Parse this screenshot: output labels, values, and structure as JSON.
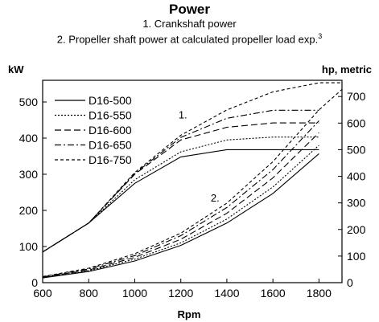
{
  "chart_data": {
    "type": "line",
    "title": "Power",
    "subtitle_1": "1. Crankshaft power",
    "subtitle_2": "2. Propeller shaft power at calculated propeller load exp.",
    "subtitle_2_sup": "3",
    "xlabel": "Rpm",
    "ylabel_left": "kW",
    "ylabel_right": "hp, metric",
    "xlim": [
      600,
      1900
    ],
    "ylim_left": [
      0,
      560
    ],
    "ylim_right": [
      0,
      761
    ],
    "x_ticks": [
      600,
      800,
      1000,
      1200,
      1400,
      1600,
      1800
    ],
    "y_ticks_left": [
      0,
      100,
      200,
      300,
      400,
      500
    ],
    "y_ticks_right": [
      0,
      100,
      200,
      300,
      400,
      500,
      600,
      700
    ],
    "curve_labels": [
      {
        "text": "1.",
        "x": 1190,
        "y": 455
      },
      {
        "text": "2.",
        "x": 1330,
        "y": 225
      }
    ],
    "legend_position": "top-left",
    "grid": false,
    "series": [
      {
        "name": "D16-500",
        "dash": "solid",
        "crankshaft": [
          [
            600,
            85
          ],
          [
            800,
            165
          ],
          [
            1000,
            275
          ],
          [
            1200,
            348
          ],
          [
            1400,
            368
          ],
          [
            1600,
            368
          ],
          [
            1800,
            368
          ]
        ],
        "propeller": [
          [
            600,
            13
          ],
          [
            800,
            31
          ],
          [
            1000,
            60
          ],
          [
            1200,
            103
          ],
          [
            1400,
            165
          ],
          [
            1600,
            247
          ],
          [
            1800,
            357
          ]
        ]
      },
      {
        "name": "D16-550",
        "dash": "dotted",
        "crankshaft": [
          [
            600,
            85
          ],
          [
            800,
            165
          ],
          [
            1000,
            285
          ],
          [
            1200,
            362
          ],
          [
            1400,
            395
          ],
          [
            1600,
            403
          ],
          [
            1800,
            403
          ]
        ],
        "propeller": [
          [
            600,
            14
          ],
          [
            800,
            33
          ],
          [
            1000,
            65
          ],
          [
            1200,
            110
          ],
          [
            1400,
            176
          ],
          [
            1600,
            265
          ],
          [
            1800,
            380
          ]
        ]
      },
      {
        "name": "D16-600",
        "dash": "dashed",
        "crankshaft": [
          [
            600,
            85
          ],
          [
            800,
            165
          ],
          [
            1000,
            300
          ],
          [
            1200,
            395
          ],
          [
            1400,
            430
          ],
          [
            1600,
            442
          ],
          [
            1800,
            442
          ]
        ],
        "propeller": [
          [
            600,
            15
          ],
          [
            800,
            35
          ],
          [
            1000,
            70
          ],
          [
            1200,
            120
          ],
          [
            1400,
            192
          ],
          [
            1600,
            290
          ],
          [
            1800,
            415
          ]
        ]
      },
      {
        "name": "D16-650",
        "dash": "dash-dot",
        "crankshaft": [
          [
            600,
            85
          ],
          [
            800,
            165
          ],
          [
            1000,
            302
          ],
          [
            1200,
            402
          ],
          [
            1400,
            455
          ],
          [
            1600,
            477
          ],
          [
            1800,
            477
          ]
        ],
        "propeller": [
          [
            600,
            16
          ],
          [
            800,
            38
          ],
          [
            1000,
            75
          ],
          [
            1200,
            130
          ],
          [
            1400,
            208
          ],
          [
            1600,
            313
          ],
          [
            1800,
            448
          ]
        ]
      },
      {
        "name": "D16-750",
        "dash": "fine-dashed",
        "crankshaft": [
          [
            600,
            85
          ],
          [
            800,
            165
          ],
          [
            1000,
            305
          ],
          [
            1200,
            408
          ],
          [
            1400,
            478
          ],
          [
            1600,
            528
          ],
          [
            1800,
            553
          ],
          [
            1900,
            553
          ]
        ],
        "propeller": [
          [
            600,
            17
          ],
          [
            800,
            40
          ],
          [
            1000,
            80
          ],
          [
            1200,
            137
          ],
          [
            1400,
            220
          ],
          [
            1600,
            335
          ],
          [
            1800,
            478
          ],
          [
            1900,
            535
          ]
        ]
      }
    ]
  }
}
